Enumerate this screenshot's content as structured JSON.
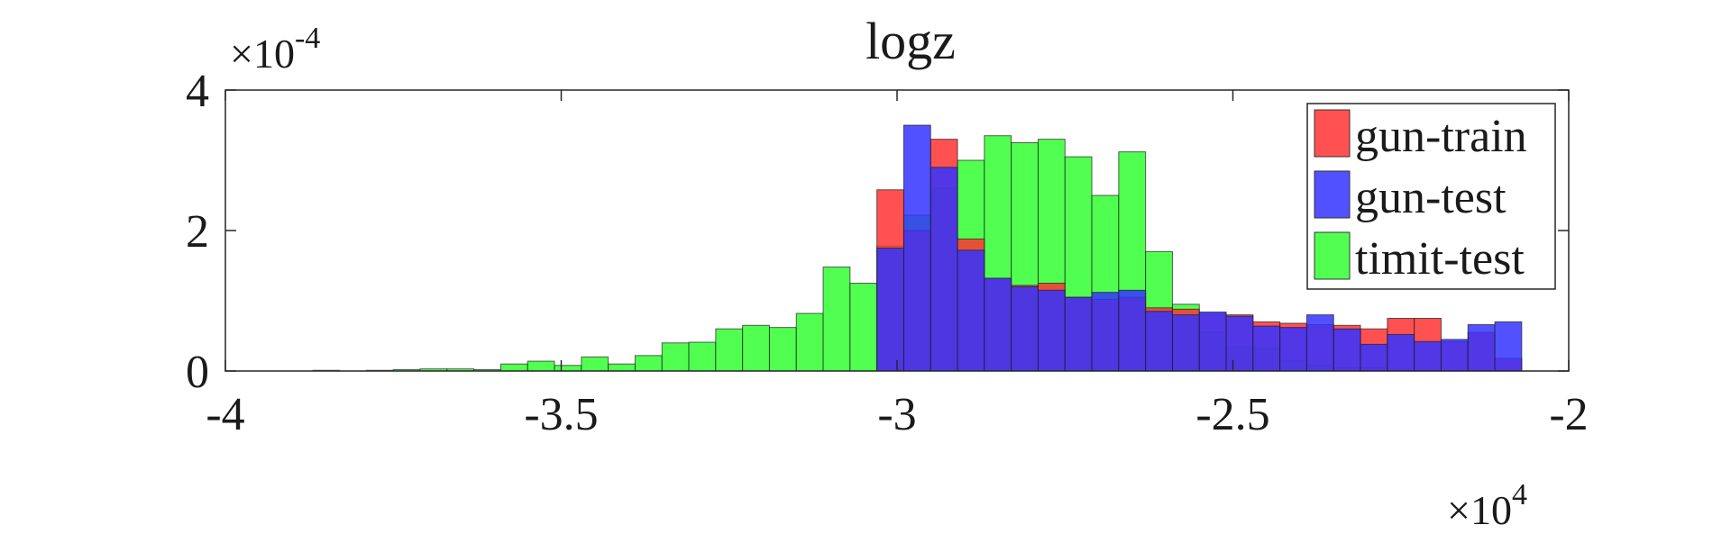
{
  "chart_data": {
    "type": "bar",
    "title": "logz",
    "xlabel": "",
    "ylabel": "",
    "x_exponent_label": "×10",
    "x_exponent": "4",
    "y_exponent_label": "×10",
    "y_exponent": "-4",
    "xlim": [
      -4,
      -2
    ],
    "ylim": [
      0,
      4
    ],
    "x_ticks": [
      "-4",
      "-3.5",
      "-3",
      "-2.5",
      "-2"
    ],
    "x_tick_values": [
      -4,
      -3.5,
      -3,
      -2.5,
      -2
    ],
    "y_ticks": [
      "0",
      "2",
      "4"
    ],
    "y_tick_values": [
      0,
      2,
      4
    ],
    "grid": false,
    "legend_position": "top-right",
    "bin_width": 0.04,
    "series": [
      {
        "name": "gun-train",
        "color": "#ff3333",
        "bin_start": -3.03,
        "values": [
          2.58,
          2.0,
          3.3,
          1.88,
          1.32,
          1.22,
          1.25,
          1.05,
          1.02,
          1.05,
          0.9,
          0.88,
          0.82,
          0.8,
          0.7,
          0.68,
          0.66,
          0.65,
          0.6,
          0.75,
          0.75,
          0.42,
          0.55,
          0.18
        ]
      },
      {
        "name": "gun-test",
        "color": "#3333ff",
        "bin_start": -3.03,
        "values": [
          1.75,
          3.5,
          2.9,
          1.72,
          1.32,
          1.2,
          1.15,
          1.05,
          1.12,
          1.15,
          0.85,
          0.8,
          0.84,
          0.78,
          0.64,
          0.62,
          0.8,
          0.6,
          0.38,
          0.52,
          0.42,
          0.45,
          0.66,
          0.7
        ]
      },
      {
        "name": "timit-test",
        "color": "#33ff33",
        "bin_start": -3.87,
        "values": [
          0.01,
          0.0,
          0.01,
          0.02,
          0.03,
          0.03,
          0.02,
          0.1,
          0.14,
          0.08,
          0.2,
          0.1,
          0.22,
          0.4,
          0.41,
          0.6,
          0.65,
          0.62,
          0.82,
          1.48,
          1.25,
          1.78,
          2.22,
          2.6,
          3.0,
          3.35,
          3.25,
          3.3,
          3.05,
          2.5,
          3.12,
          1.7,
          0.95,
          0.55,
          0.35,
          0.32,
          0.15,
          0.08,
          0.05,
          0.05,
          0.02
        ]
      }
    ]
  }
}
